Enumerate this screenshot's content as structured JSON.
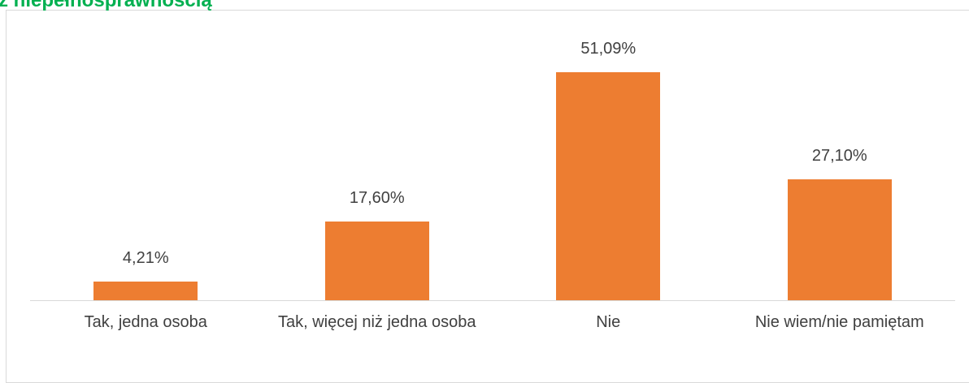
{
  "chart_data": {
    "type": "bar",
    "title": "z niepełnosprawnością",
    "categories": [
      "Tak, jedna osoba",
      "Tak, więcej niż jedna osoba",
      "Nie",
      "Nie wiem/nie pamiętam"
    ],
    "values": [
      4.21,
      17.6,
      51.09,
      27.1
    ],
    "value_labels": [
      "4,21%",
      "17,60%",
      "51,09%",
      "27,10%"
    ],
    "color": "#ed7d31"
  }
}
